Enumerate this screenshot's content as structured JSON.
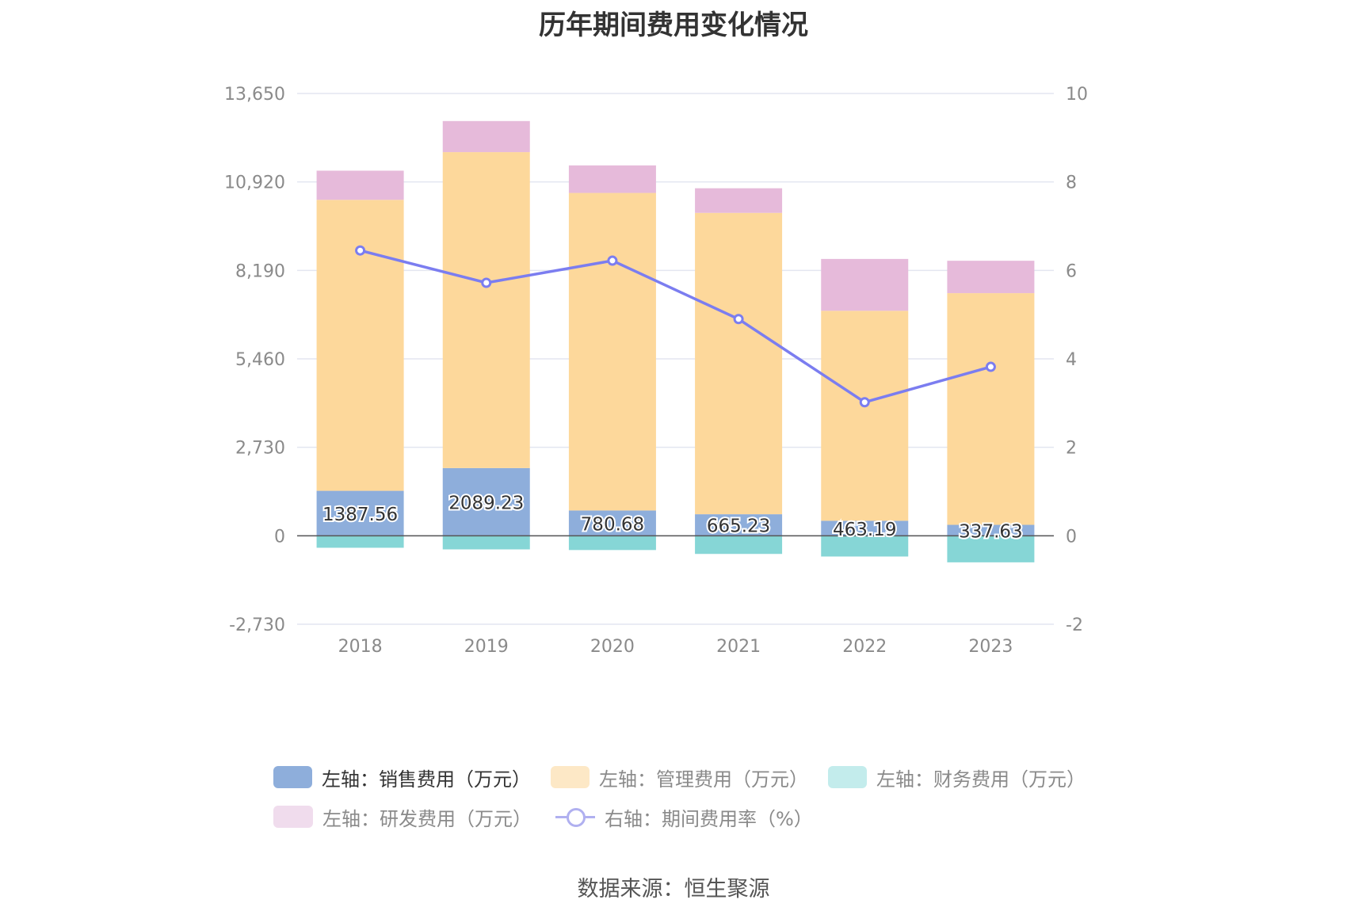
{
  "title": "历年期间费用变化情况",
  "source": "数据来源：恒生聚源",
  "legend": [
    {
      "label": "左轴：销售费用（万元）",
      "color": "#8eaedb",
      "kind": "bar",
      "active": true
    },
    {
      "label": "左轴：管理费用（万元）",
      "color": "#fde8c6",
      "kind": "bar",
      "active": false
    },
    {
      "label": "左轴：财务费用（万元）",
      "color": "#c3ecec",
      "kind": "bar",
      "active": false
    },
    {
      "label": "左轴：研发费用（万元）",
      "color": "#f0dced",
      "kind": "bar",
      "active": false
    },
    {
      "label": "右轴：期间费用率（%）",
      "color": "#b0b0f0",
      "kind": "line",
      "active": false
    }
  ],
  "chart_data": {
    "type": "bar",
    "stacked": true,
    "title": "历年期间费用变化情况",
    "categories": [
      "2018",
      "2019",
      "2020",
      "2021",
      "2022",
      "2023"
    ],
    "y_left": {
      "ticks": [
        "13,650",
        "10,920",
        "8,190",
        "5,460",
        "2,730",
        "0",
        "-2,730"
      ],
      "ylim": [
        -2730,
        13650
      ]
    },
    "y_right": {
      "ticks": [
        "10",
        "8",
        "6",
        "4",
        "2",
        "0",
        "-2"
      ],
      "ylim": [
        -2,
        10
      ]
    },
    "series": [
      {
        "name": "左轴：销售费用（万元）",
        "axis": "left",
        "color": "#8eaedb",
        "values": [
          1387.56,
          2089.23,
          780.68,
          665.23,
          463.19,
          337.63
        ],
        "labels": [
          "1387.56",
          "2089.23",
          "780.68",
          "665.23",
          "463.19",
          "337.63"
        ]
      },
      {
        "name": "左轴：管理费用（万元）",
        "axis": "left",
        "color": "#fdd89b",
        "values": [
          8980,
          9750,
          9800,
          9300,
          6480,
          7150
        ]
      },
      {
        "name": "左轴：财务费用（万元）",
        "axis": "left",
        "color": "#86d6d6",
        "values": [
          -370,
          -420,
          -440,
          -560,
          -640,
          -820
        ]
      },
      {
        "name": "左轴：研发费用（万元）",
        "axis": "left",
        "color": "#e6bada",
        "values": [
          900,
          960,
          850,
          760,
          1600,
          1000
        ]
      },
      {
        "name": "右轴：期间费用率（%）",
        "axis": "right",
        "type": "line",
        "color": "#7b7df0",
        "values": [
          6.45,
          5.72,
          6.22,
          4.9,
          3.02,
          3.82
        ]
      }
    ],
    "grid": true,
    "legend_position": "bottom"
  }
}
